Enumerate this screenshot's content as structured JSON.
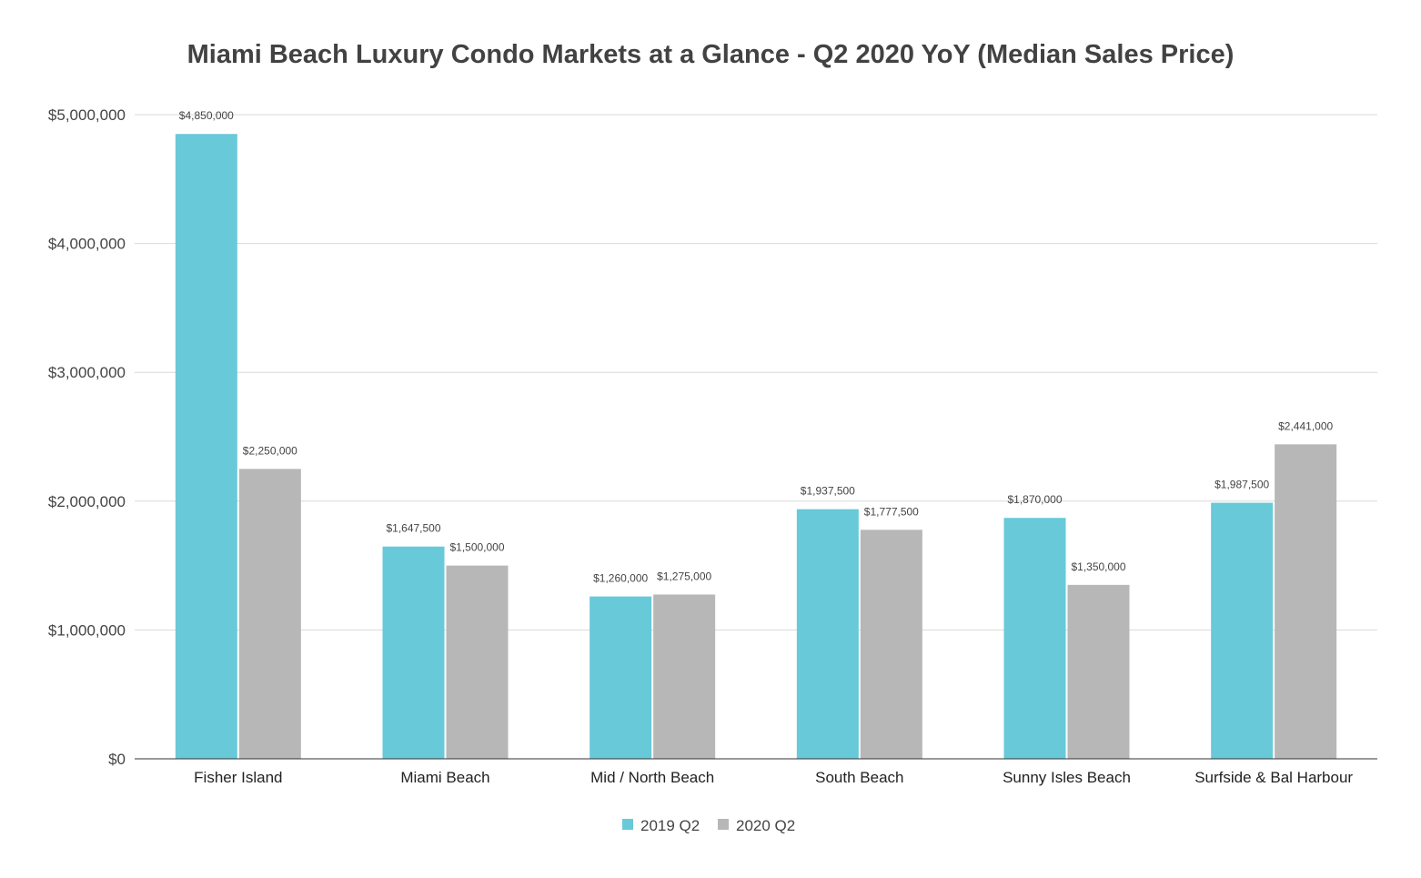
{
  "chart_data": {
    "type": "bar",
    "title": "Miami Beach Luxury Condo Markets at a Glance - Q2 2020 YoY (Median Sales Price)",
    "xlabel": "",
    "ylabel": "",
    "categories": [
      "Fisher Island",
      "Miami Beach",
      "Mid / North Beach",
      "South Beach",
      "Sunny Isles Beach",
      "Surfside & Bal Harbour"
    ],
    "series": [
      {
        "name": "2019 Q2",
        "color": "#68c9d9",
        "values": [
          4850000,
          1647500,
          1260000,
          1937500,
          1870000,
          1987500
        ],
        "labels": [
          "$4,850,000",
          "$1,647,500",
          "$1,260,000",
          "$1,937,500",
          "$1,870,000",
          "$1,987,500"
        ]
      },
      {
        "name": "2020 Q2",
        "color": "#b7b7b7",
        "values": [
          2250000,
          1500000,
          1275000,
          1777500,
          1350000,
          2441000
        ],
        "labels": [
          "$2,250,000",
          "$1,500,000",
          "$1,275,000",
          "$1,777,500",
          "$1,350,000",
          "$2,441,000"
        ]
      }
    ],
    "ylim": [
      0,
      5000000
    ],
    "yticks": [
      0,
      1000000,
      2000000,
      3000000,
      4000000,
      5000000
    ],
    "ytick_labels": [
      "$0",
      "$1,000,000",
      "$2,000,000",
      "$3,000,000",
      "$4,000,000",
      "$5,000,000"
    ],
    "grid": true,
    "legend_position": "bottom"
  }
}
